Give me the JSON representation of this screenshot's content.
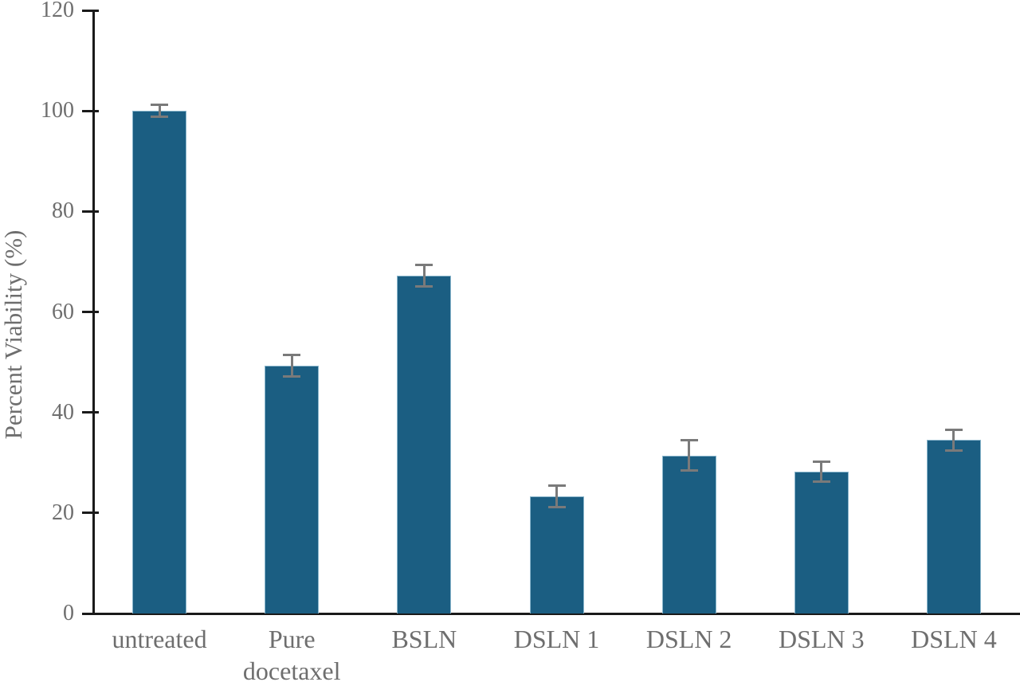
{
  "figure": {
    "background_color": "#ffffff"
  },
  "chart_data": {
    "type": "bar",
    "title": "",
    "xlabel": "",
    "ylabel": "Percent Viability (%)",
    "categories": [
      "untreated",
      "Pure docetaxel",
      "BSLN",
      "DSLN 1",
      "DSLN 2",
      "DSLN 3",
      "DSLN 4"
    ],
    "values": [
      100,
      49.3,
      67.2,
      23.3,
      31.4,
      28.2,
      34.5
    ],
    "errors": [
      1.2,
      2.1,
      2.1,
      2.1,
      3.0,
      2.0,
      2.1
    ],
    "ylim": [
      0,
      120
    ],
    "yticks": [
      0,
      20,
      40,
      60,
      80,
      100,
      120
    ],
    "grid": false,
    "legend_position": "none",
    "bar_color": "#1b5e82",
    "bar_edge_color": "#8ab6cc",
    "error_bar_color": "#7a7a7a",
    "axis_color": "#1a1a1a",
    "label_color": "#6e6e6e"
  }
}
